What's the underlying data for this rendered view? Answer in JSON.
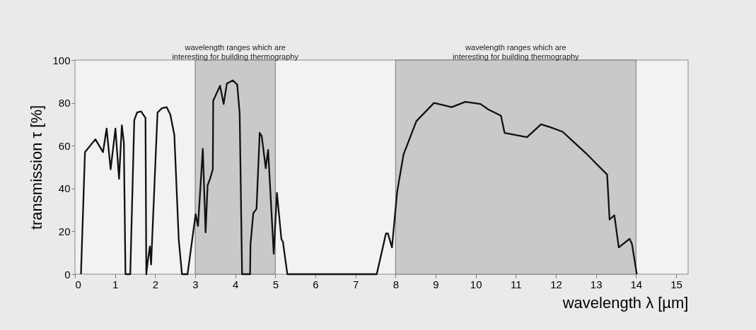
{
  "chart_data": {
    "type": "line",
    "xlabel": "wavelength λ [µm]",
    "ylabel": "transmission τ [%]",
    "xlim": [
      0,
      15.3
    ],
    "ylim": [
      0,
      100
    ],
    "xticks": [
      0,
      1,
      2,
      3,
      4,
      5,
      6,
      7,
      8,
      9,
      10,
      11,
      12,
      13,
      14,
      15
    ],
    "yticks": [
      0,
      20,
      40,
      60,
      80,
      100
    ],
    "grid": false,
    "marker": "none",
    "line_style": "solid",
    "bands": [
      {
        "axis": "x",
        "from": 3,
        "to": 5,
        "label": "wavelength ranges which are\ninteresting for building thermography",
        "color": "#c8c9cb"
      },
      {
        "axis": "x",
        "from": 8,
        "to": 14,
        "label": "wavelength ranges which are\ninteresting for building thermography",
        "color": "#c8c9cb"
      }
    ],
    "series": [
      {
        "color": "#111111",
        "x": [
          0.15,
          0.25,
          0.51,
          0.7,
          0.79,
          0.89,
          1.01,
          1.1,
          1.17,
          1.22,
          1.26,
          1.38,
          1.48,
          1.55,
          1.65,
          1.76,
          1.78,
          1.82,
          1.87,
          1.9,
          2.06,
          2.17,
          2.29,
          2.38,
          2.48,
          2.59,
          2.67,
          2.81,
          3.01,
          3.07,
          3.19,
          3.26,
          3.31,
          3.37,
          3.44,
          3.45,
          3.62,
          3.71,
          3.79,
          3.94,
          4.05,
          4.11,
          4.17,
          4.37,
          4.38,
          4.45,
          4.53,
          4.61,
          4.66,
          4.76,
          4.82,
          4.96,
          5.04,
          5.15,
          5.19,
          5.3,
          7.53,
          7.76,
          7.81,
          7.91,
          8.04,
          8.2,
          8.52,
          8.96,
          9.4,
          9.74,
          10.12,
          10.31,
          10.63,
          10.72,
          11.28,
          11.63,
          11.88,
          12.17,
          12.43,
          12.75,
          13.04,
          13.28,
          13.34,
          13.46,
          13.57,
          13.84,
          13.9,
          14.02
        ],
        "values": [
          0,
          57,
          63,
          57,
          68,
          49,
          68,
          44.5,
          69.5,
          61.5,
          0,
          0,
          72,
          75.5,
          76,
          73,
          0,
          6.5,
          13,
          4.5,
          75.5,
          77.5,
          78,
          74.5,
          65,
          16,
          0,
          0,
          28,
          22.5,
          58.5,
          19.5,
          41.5,
          44.5,
          49,
          81,
          88,
          79.5,
          89,
          90.5,
          88.5,
          75,
          0,
          0,
          14,
          28.5,
          30.5,
          66,
          64.5,
          49.5,
          58,
          9.5,
          38,
          16.5,
          15,
          0,
          0,
          19,
          19,
          12.5,
          38.5,
          56,
          71.5,
          80,
          78,
          80.5,
          79.5,
          77,
          74,
          66,
          64,
          70,
          68.5,
          66.5,
          62,
          56.5,
          51,
          46.5,
          25.5,
          27.5,
          12.5,
          16.5,
          14,
          0
        ]
      }
    ]
  }
}
